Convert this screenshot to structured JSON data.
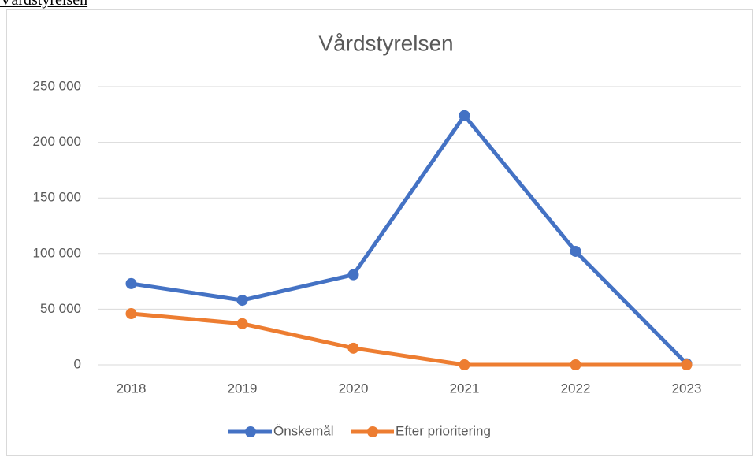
{
  "page_heading": "Vårdstyrelsen",
  "chart_data": {
    "type": "line",
    "title": "Vårdstyrelsen",
    "categories": [
      "2018",
      "2019",
      "2020",
      "2021",
      "2022",
      "2023"
    ],
    "series": [
      {
        "name": "Önskemål",
        "color": "#4472c4",
        "values": [
          73000,
          58000,
          81000,
          224000,
          102000,
          1000
        ]
      },
      {
        "name": "Efter prioritering",
        "color": "#ed7d31",
        "values": [
          46000,
          37000,
          15000,
          0,
          0,
          0
        ]
      }
    ],
    "ylim": [
      0,
      250000
    ],
    "yticks": [
      0,
      {
        "value": 50000,
        "label": "50 000"
      },
      {
        "value": 100000,
        "label": "100 000"
      },
      {
        "value": 150000,
        "label": "150 000"
      },
      {
        "value": 200000,
        "label": "200 000"
      },
      {
        "value": 250000,
        "label": "250 000"
      }
    ],
    "grid": true,
    "legend": "bottom"
  }
}
